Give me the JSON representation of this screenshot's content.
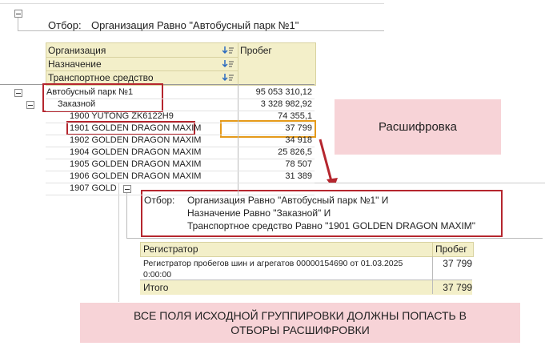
{
  "report": {
    "filter_label": "Отбор:",
    "filter_text": "Организация Равно \"Автобусный парк №1\"",
    "grouping_fields": [
      "Организация",
      "Назначение",
      "Транспортное средство"
    ],
    "value_header": "Пробег",
    "rows": [
      {
        "label": "Автобусный парк №1",
        "value": "95 053 310,12",
        "children": [
          {
            "label": "Заказной",
            "value": "3 328 982,92",
            "children": [
              {
                "label": "1900 YUTONG ZK6122H9",
                "value": "74 355,1"
              },
              {
                "label": "1901 GOLDEN DRAGON MAXIM",
                "value": "37 799"
              },
              {
                "label": "1902 GOLDEN DRAGON MAXIM",
                "value": "34 918"
              },
              {
                "label": "1904 GOLDEN DRAGON MAXIM",
                "value": "25 826,5"
              },
              {
                "label": "1905 GOLDEN DRAGON MAXIM",
                "value": "78 507"
              },
              {
                "label": "1906 GOLDEN DRAGON MAXIM",
                "value": "31 389"
              },
              {
                "label": "1907 GOLD",
                "value": null
              }
            ]
          }
        ]
      }
    ]
  },
  "decoding_label": "Расшифровка",
  "detail": {
    "filter_label": "Отбор:",
    "filter_lines": [
      "Организация Равно \"Автобусный парк №1\" И",
      "Назначение Равно \"Заказной\" И",
      "Транспортное средство Равно \"1901 GOLDEN DRAGON MAXIM\""
    ],
    "column_headers": [
      "Регистратор",
      "Пробег"
    ],
    "rows": [
      [
        "Регистратор пробегов шин и агрегатов 00000154690 от 01.03.2025 0:00:00",
        "37 799"
      ]
    ],
    "total": {
      "label": "Итого",
      "value": "37 799"
    }
  },
  "note": "ВСЕ ПОЛЯ ИСХОДНОЙ ГРУППИРОВКИ ДОЛЖНЫ ПОПАСТЬ В ОТБОРЫ РАСШИФРОВКИ"
}
